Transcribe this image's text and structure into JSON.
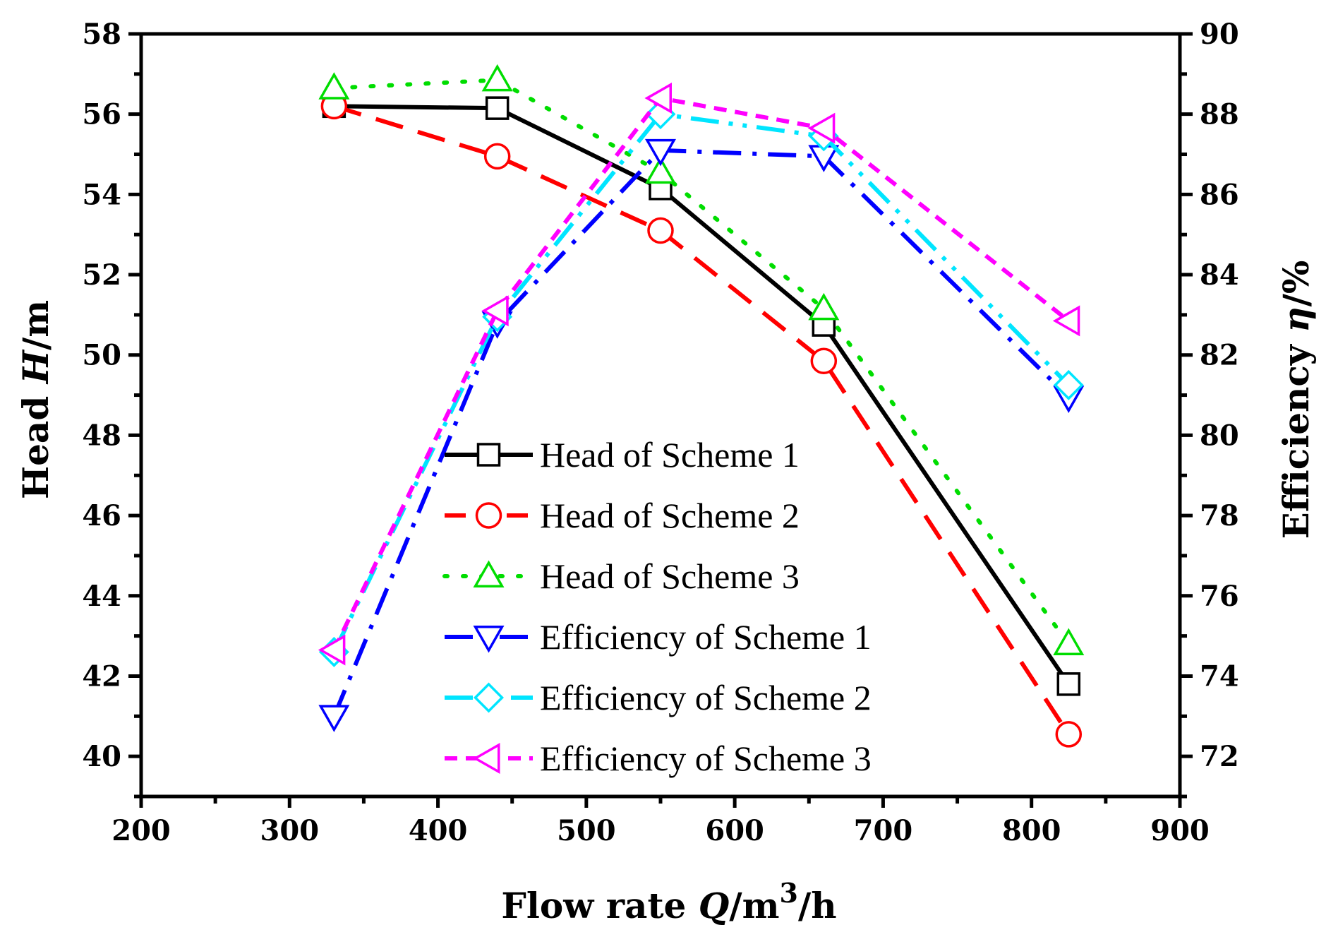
{
  "chart_data": {
    "type": "line",
    "x": [
      330,
      440,
      550,
      660,
      825
    ],
    "x_axis": {
      "label_main": "Flow rate ",
      "label_italic": "Q",
      "label_unit": "/m",
      "label_sup": "3",
      "label_tail": "/h",
      "range": [
        200,
        900
      ],
      "ticks": [
        "200",
        "300",
        "400",
        "500",
        "600",
        "700",
        "800",
        "900"
      ]
    },
    "y_left": {
      "label_main": "Head ",
      "label_italic": "H",
      "label_unit": "/m",
      "range": [
        39,
        58
      ],
      "ticks": [
        "40",
        "42",
        "44",
        "46",
        "48",
        "50",
        "52",
        "54",
        "56",
        "58"
      ]
    },
    "y_right": {
      "label_main": "Efficiency ",
      "label_italic": "η",
      "label_unit": "/%",
      "range": [
        71,
        90
      ],
      "ticks": [
        "72",
        "74",
        "76",
        "78",
        "80",
        "82",
        "84",
        "86",
        "88",
        "90"
      ]
    },
    "series": [
      {
        "name": "Head of Scheme 1",
        "axis": "left",
        "color": "#000000",
        "dash": "solid",
        "marker": "square",
        "values": [
          56.2,
          56.15,
          54.15,
          50.75,
          41.8
        ]
      },
      {
        "name": "Head of Scheme 2",
        "axis": "left",
        "color": "#ff0000",
        "dash": "dash",
        "marker": "circle",
        "values": [
          56.2,
          54.95,
          53.1,
          49.85,
          40.55
        ]
      },
      {
        "name": "Head of Scheme 3",
        "axis": "left",
        "color": "#00dd00",
        "dash": "dot",
        "marker": "triangle-up",
        "values": [
          56.65,
          56.85,
          54.55,
          51.15,
          42.8
        ]
      },
      {
        "name": "Efficiency of Scheme 1",
        "axis": "right",
        "color": "#0000ff",
        "dash": "dashdot",
        "marker": "triangle-down",
        "values": [
          73.0,
          82.8,
          87.1,
          86.95,
          80.95
        ]
      },
      {
        "name": "Efficiency of Scheme 2",
        "axis": "right",
        "color": "#00e5ff",
        "dash": "dashdotdot",
        "marker": "diamond",
        "values": [
          74.6,
          82.95,
          88.0,
          87.45,
          81.25
        ]
      },
      {
        "name": "Efficiency of Scheme 3",
        "axis": "right",
        "color": "#ff00ff",
        "dash": "shortdash",
        "marker": "triangle-left",
        "values": [
          74.65,
          83.1,
          88.4,
          87.65,
          82.85
        ]
      }
    ],
    "legend_position": "center-right"
  }
}
